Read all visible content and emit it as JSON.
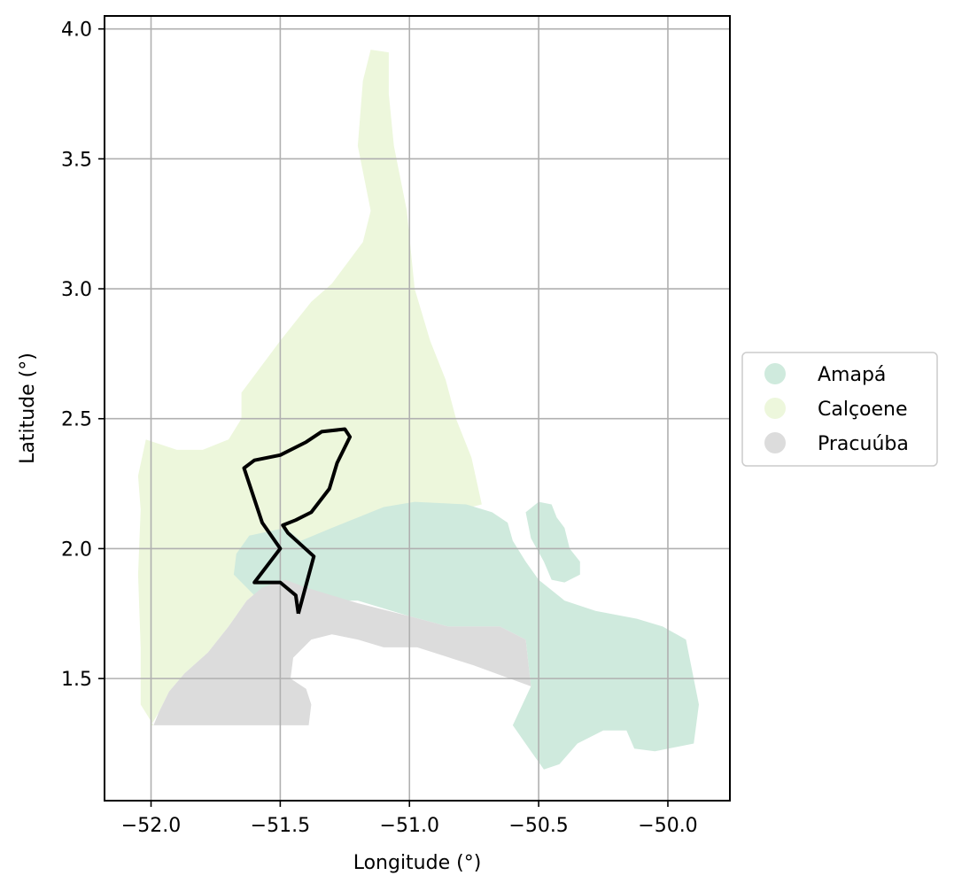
{
  "chart_data": {
    "type": "map",
    "xlabel": "Longitude (°)",
    "ylabel": "Latitude (°)",
    "xlim": [
      -52.18,
      -49.76
    ],
    "ylim": [
      1.03,
      4.05
    ],
    "x_ticks": [
      -52.0,
      -51.5,
      -51.0,
      -50.5,
      -50.0
    ],
    "x_tick_labels": [
      "−52.0",
      "−51.5",
      "−51.0",
      "−50.5",
      "−50.0"
    ],
    "y_ticks": [
      1.5,
      2.0,
      2.5,
      3.0,
      3.5,
      4.0
    ],
    "y_tick_labels": [
      "1.5",
      "2.0",
      "2.5",
      "3.0",
      "3.5",
      "4.0"
    ],
    "grid": true,
    "legend_position": "center-right, outside plot",
    "legend": [
      {
        "label": "Amapá",
        "color": "#cfeadd"
      },
      {
        "label": "Calçoene",
        "color": "#edf7dc"
      },
      {
        "label": "Pracuúba",
        "color": "#dcdcdc"
      }
    ],
    "regions": [
      {
        "name": "Calçoene",
        "color": "#edf7dc",
        "coords": [
          [
            -52.0,
            1.32
          ],
          [
            -51.99,
            1.32
          ],
          [
            -52.04,
            1.4
          ],
          [
            -52.04,
            1.62
          ],
          [
            -52.05,
            1.9
          ],
          [
            -52.04,
            2.15
          ],
          [
            -52.05,
            2.28
          ],
          [
            -52.02,
            2.42
          ],
          [
            -51.9,
            2.38
          ],
          [
            -51.8,
            2.38
          ],
          [
            -51.7,
            2.42
          ],
          [
            -51.65,
            2.5
          ],
          [
            -51.65,
            2.6
          ],
          [
            -51.5,
            2.8
          ],
          [
            -51.38,
            2.95
          ],
          [
            -51.3,
            3.02
          ],
          [
            -51.18,
            3.18
          ],
          [
            -51.15,
            3.3
          ],
          [
            -51.2,
            3.55
          ],
          [
            -51.18,
            3.8
          ],
          [
            -51.15,
            3.92
          ],
          [
            -51.08,
            3.91
          ],
          [
            -51.08,
            3.75
          ],
          [
            -51.06,
            3.55
          ],
          [
            -51.01,
            3.3
          ],
          [
            -50.98,
            3.0
          ],
          [
            -50.92,
            2.8
          ],
          [
            -50.86,
            2.65
          ],
          [
            -50.82,
            2.5
          ],
          [
            -50.76,
            2.35
          ],
          [
            -50.72,
            2.17
          ],
          [
            -50.8,
            2.15
          ],
          [
            -50.92,
            2.17
          ],
          [
            -51.02,
            2.17
          ],
          [
            -51.15,
            2.13
          ],
          [
            -51.3,
            2.05
          ],
          [
            -51.41,
            1.97
          ],
          [
            -51.48,
            1.88
          ],
          [
            -51.57,
            1.85
          ],
          [
            -51.63,
            1.8
          ],
          [
            -51.7,
            1.7
          ],
          [
            -51.78,
            1.6
          ],
          [
            -51.87,
            1.52
          ],
          [
            -51.93,
            1.45
          ],
          [
            -51.97,
            1.37
          ]
        ]
      },
      {
        "name": "Amapá",
        "color": "#cfeadd",
        "coords": [
          [
            -51.67,
            1.98
          ],
          [
            -51.62,
            2.05
          ],
          [
            -51.48,
            2.08
          ],
          [
            -51.42,
            2.03
          ],
          [
            -51.3,
            2.08
          ],
          [
            -51.1,
            2.16
          ],
          [
            -50.98,
            2.18
          ],
          [
            -50.78,
            2.17
          ],
          [
            -50.68,
            2.14
          ],
          [
            -50.62,
            2.1
          ],
          [
            -50.6,
            2.03
          ],
          [
            -50.55,
            1.95
          ],
          [
            -50.5,
            1.88
          ],
          [
            -50.4,
            1.8
          ],
          [
            -50.28,
            1.76
          ],
          [
            -50.12,
            1.73
          ],
          [
            -50.02,
            1.7
          ],
          [
            -49.93,
            1.65
          ],
          [
            -49.91,
            1.55
          ],
          [
            -49.88,
            1.4
          ],
          [
            -49.9,
            1.25
          ],
          [
            -50.05,
            1.22
          ],
          [
            -50.13,
            1.23
          ],
          [
            -50.16,
            1.3
          ],
          [
            -50.25,
            1.3
          ],
          [
            -50.35,
            1.25
          ],
          [
            -50.42,
            1.17
          ],
          [
            -50.48,
            1.15
          ],
          [
            -50.53,
            1.22
          ],
          [
            -50.6,
            1.32
          ],
          [
            -50.53,
            1.47
          ],
          [
            -50.55,
            1.65
          ],
          [
            -50.65,
            1.7
          ],
          [
            -50.85,
            1.7
          ],
          [
            -51.0,
            1.74
          ],
          [
            -51.2,
            1.8
          ],
          [
            -51.3,
            1.8
          ],
          [
            -51.4,
            1.76
          ],
          [
            -51.6,
            1.82
          ],
          [
            -51.68,
            1.9
          ]
        ]
      },
      {
        "name": "Amapá (island)",
        "color": "#cfeadd",
        "coords": [
          [
            -50.55,
            2.14
          ],
          [
            -50.5,
            2.18
          ],
          [
            -50.45,
            2.17
          ],
          [
            -50.43,
            2.12
          ],
          [
            -50.4,
            2.08
          ],
          [
            -50.38,
            2.0
          ],
          [
            -50.34,
            1.95
          ],
          [
            -50.34,
            1.9
          ],
          [
            -50.4,
            1.87
          ],
          [
            -50.45,
            1.88
          ],
          [
            -50.48,
            1.95
          ],
          [
            -50.53,
            2.04
          ]
        ]
      },
      {
        "name": "Pracuúba",
        "color": "#dcdcdc",
        "coords": [
          [
            -51.99,
            1.32
          ],
          [
            -51.97,
            1.37
          ],
          [
            -51.93,
            1.45
          ],
          [
            -51.87,
            1.52
          ],
          [
            -51.78,
            1.6
          ],
          [
            -51.7,
            1.7
          ],
          [
            -51.63,
            1.8
          ],
          [
            -51.57,
            1.85
          ],
          [
            -51.48,
            1.88
          ],
          [
            -51.4,
            1.85
          ],
          [
            -51.3,
            1.82
          ],
          [
            -51.2,
            1.79
          ],
          [
            -51.0,
            1.74
          ],
          [
            -50.85,
            1.7
          ],
          [
            -50.65,
            1.7
          ],
          [
            -50.55,
            1.65
          ],
          [
            -50.53,
            1.47
          ],
          [
            -50.75,
            1.55
          ],
          [
            -50.97,
            1.62
          ],
          [
            -51.1,
            1.62
          ],
          [
            -51.2,
            1.65
          ],
          [
            -51.3,
            1.67
          ],
          [
            -51.38,
            1.65
          ],
          [
            -51.45,
            1.58
          ],
          [
            -51.46,
            1.5
          ],
          [
            -51.4,
            1.46
          ],
          [
            -51.38,
            1.4
          ],
          [
            -51.39,
            1.32
          ]
        ]
      }
    ],
    "outline": {
      "color": "#000000",
      "coords": [
        [
          -51.43,
          1.75
        ],
        [
          -51.44,
          1.82
        ],
        [
          -51.5,
          1.87
        ],
        [
          -51.6,
          1.87
        ],
        [
          -51.5,
          2.0
        ],
        [
          -51.57,
          2.1
        ],
        [
          -51.64,
          2.31
        ],
        [
          -51.6,
          2.34
        ],
        [
          -51.5,
          2.36
        ],
        [
          -51.4,
          2.41
        ],
        [
          -51.34,
          2.45
        ],
        [
          -51.25,
          2.46
        ],
        [
          -51.23,
          2.43
        ],
        [
          -51.28,
          2.33
        ],
        [
          -51.31,
          2.23
        ],
        [
          -51.38,
          2.14
        ],
        [
          -51.44,
          2.11
        ],
        [
          -51.49,
          2.09
        ],
        [
          -51.47,
          2.06
        ],
        [
          -51.37,
          1.97
        ],
        [
          -51.43,
          1.75
        ]
      ]
    }
  }
}
